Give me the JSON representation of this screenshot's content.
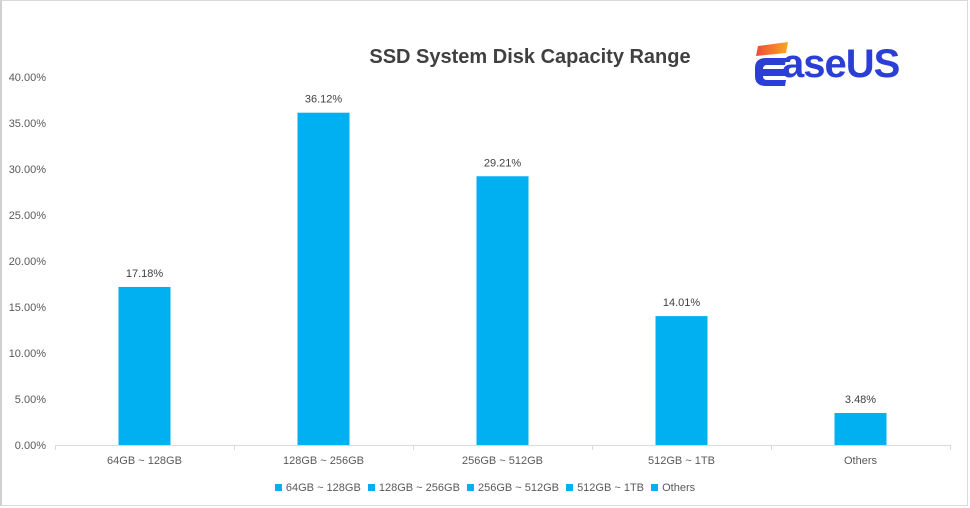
{
  "chart_data": {
    "type": "bar",
    "title": "SSD System Disk Capacity Range",
    "categories": [
      "64GB ~ 128GB",
      "128GB ~ 256GB",
      "256GB ~ 512GB",
      "512GB ~ 1TB",
      "Others"
    ],
    "values": [
      17.18,
      36.12,
      29.21,
      14.01,
      3.48
    ],
    "data_labels": [
      "17.18%",
      "36.12%",
      "29.21%",
      "14.01%",
      "3.48%"
    ],
    "xlabel": "",
    "ylabel": "",
    "ylim": [
      0,
      40
    ],
    "yticks": [
      "0.00%",
      "5.00%",
      "10.00%",
      "15.00%",
      "20.00%",
      "25.00%",
      "30.00%",
      "35.00%",
      "40.00%"
    ],
    "grid": false,
    "legend": {
      "placement": "bottom",
      "entries": [
        "64GB ~ 128GB",
        "128GB ~ 256GB",
        "256GB ~ 512GB",
        "512GB ~ 1TB",
        "Others"
      ]
    },
    "bar_color": "#00b0f0"
  },
  "logo": {
    "text": "EaseUS",
    "color": "#2b3fd6",
    "accent_gradient": [
      "#f04a3a",
      "#f7a81b"
    ]
  }
}
